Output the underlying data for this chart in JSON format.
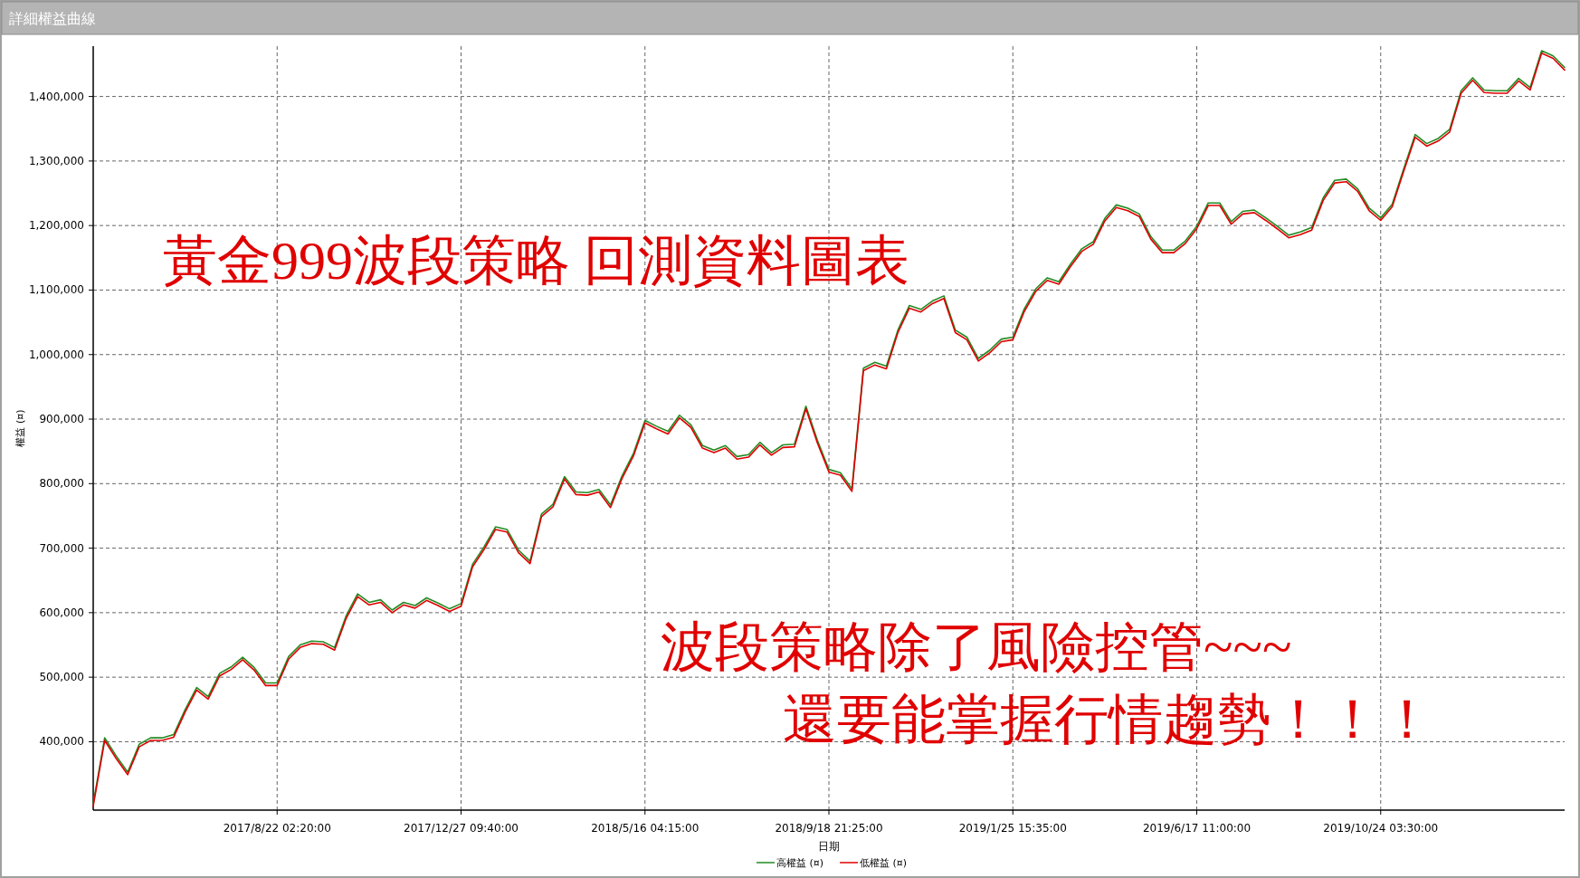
{
  "chart_data": {
    "type": "line",
    "title": "詳細權益曲線",
    "xlabel": "日期",
    "ylabel": "權益 (¤)",
    "annotations": [
      "黃金999波段策略 回測資料圖表",
      "波段策略除了風險控管~~~",
      "還要能掌握行情趨勢！！！"
    ],
    "categories": [
      null,
      null,
      null,
      null,
      null,
      null,
      null,
      null,
      null,
      null,
      null,
      null,
      null,
      null,
      null,
      null,
      "2017/8/22 02:20:00",
      null,
      null,
      null,
      null,
      null,
      null,
      null,
      null,
      null,
      null,
      null,
      null,
      null,
      null,
      null,
      "2017/12/27 09:40:00",
      null,
      null,
      null,
      null,
      null,
      null,
      null,
      null,
      null,
      null,
      null,
      null,
      null,
      null,
      null,
      "2018/5/16 04:15:00",
      null,
      null,
      null,
      null,
      null,
      null,
      null,
      null,
      null,
      null,
      null,
      null,
      null,
      null,
      null,
      "2018/9/18 21:25:00",
      null,
      null,
      null,
      null,
      null,
      null,
      null,
      null,
      null,
      null,
      null,
      null,
      null,
      null,
      null,
      "2019/1/25 15:35:00",
      null,
      null,
      null,
      null,
      null,
      null,
      null,
      null,
      null,
      null,
      null,
      null,
      null,
      null,
      null,
      "2019/6/17 11:00:00",
      null,
      null,
      null,
      null,
      null,
      null,
      null,
      null,
      null,
      null,
      null,
      null,
      null,
      null,
      null,
      "2019/10/24 03:30:00",
      null,
      null,
      null,
      null,
      null,
      null,
      null,
      null,
      null,
      null,
      null,
      null,
      null,
      null,
      null,
      null
    ],
    "series": [
      {
        "name": "高權益 (¤)",
        "color": "#228b22",
        "values": [
          304000,
          406000,
          378000,
          353000,
          396000,
          406000,
          406000,
          411000,
          450000,
          484000,
          470000,
          506000,
          516000,
          531000,
          515000,
          491000,
          491000,
          532000,
          550000,
          556000,
          555000,
          546000,
          595000,
          629000,
          616000,
          620000,
          604000,
          616000,
          611000,
          623000,
          615000,
          606000,
          614000,
          675000,
          702000,
          733000,
          729000,
          697000,
          680000,
          753000,
          768000,
          811000,
          787000,
          786000,
          791000,
          767000,
          812000,
          847000,
          898000,
          889000,
          881000,
          906000,
          891000,
          859000,
          852000,
          859000,
          842000,
          845000,
          864000,
          848000,
          860000,
          861000,
          920000,
          867000,
          822000,
          817000,
          792000,
          979000,
          988000,
          982000,
          1038000,
          1076000,
          1070000,
          1083000,
          1091000,
          1038000,
          1027000,
          994000,
          1007000,
          1024000,
          1027000,
          1071000,
          1102000,
          1119000,
          1113000,
          1140000,
          1164000,
          1175000,
          1211000,
          1232000,
          1227000,
          1218000,
          1183000,
          1162000,
          1162000,
          1176000,
          1199000,
          1235000,
          1235000,
          1206000,
          1222000,
          1224000,
          1212000,
          1199000,
          1185000,
          1190000,
          1197000,
          1243000,
          1270000,
          1272000,
          1257000,
          1227000,
          1212000,
          1233000,
          1288000,
          1341000,
          1327000,
          1335000,
          1349000,
          1409000,
          1429000,
          1410000,
          1409000,
          1409000,
          1428000,
          1414000,
          1471000,
          1463000,
          1445000
        ]
      },
      {
        "name": "低權益 (¤)",
        "color": "#e00000",
        "values": [
          300000,
          402000,
          374000,
          349000,
          392000,
          402000,
          402000,
          407000,
          446000,
          480000,
          466000,
          502000,
          512000,
          527000,
          511000,
          487000,
          487000,
          528000,
          546000,
          552000,
          551000,
          542000,
          591000,
          625000,
          612000,
          616000,
          600000,
          612000,
          607000,
          619000,
          611000,
          602000,
          610000,
          671000,
          698000,
          729000,
          725000,
          693000,
          676000,
          749000,
          764000,
          807000,
          783000,
          782000,
          787000,
          763000,
          808000,
          843000,
          894000,
          885000,
          877000,
          902000,
          887000,
          855000,
          848000,
          855000,
          838000,
          841000,
          860000,
          844000,
          856000,
          857000,
          916000,
          863000,
          818000,
          813000,
          788000,
          975000,
          984000,
          978000,
          1034000,
          1072000,
          1066000,
          1079000,
          1087000,
          1034000,
          1023000,
          990000,
          1003000,
          1020000,
          1023000,
          1067000,
          1098000,
          1115000,
          1109000,
          1136000,
          1160000,
          1171000,
          1207000,
          1228000,
          1223000,
          1214000,
          1179000,
          1158000,
          1158000,
          1172000,
          1195000,
          1231000,
          1231000,
          1202000,
          1218000,
          1220000,
          1208000,
          1195000,
          1181000,
          1186000,
          1193000,
          1239000,
          1266000,
          1268000,
          1253000,
          1223000,
          1208000,
          1229000,
          1284000,
          1337000,
          1323000,
          1331000,
          1345000,
          1405000,
          1425000,
          1406000,
          1405000,
          1405000,
          1424000,
          1410000,
          1467000,
          1459000,
          1441000
        ]
      }
    ],
    "ylim": [
      294000,
      1478000
    ],
    "yticks": [
      {
        "value": 400000,
        "label": "400,000"
      },
      {
        "value": 500000,
        "label": "500,000"
      },
      {
        "value": 600000,
        "label": "600,000"
      },
      {
        "value": 700000,
        "label": "700,000"
      },
      {
        "value": 800000,
        "label": "800,000"
      },
      {
        "value": 900000,
        "label": "900,000"
      },
      {
        "value": 1000000,
        "label": "1,000,000"
      },
      {
        "value": 1100000,
        "label": "1,100,000"
      },
      {
        "value": 1200000,
        "label": "1,200,000"
      },
      {
        "value": 1300000,
        "label": "1,300,000"
      },
      {
        "value": 1400000,
        "label": "1,400,000"
      }
    ],
    "grid": true,
    "legend": "bottom",
    "line_style": "solid",
    "marker": "none"
  }
}
